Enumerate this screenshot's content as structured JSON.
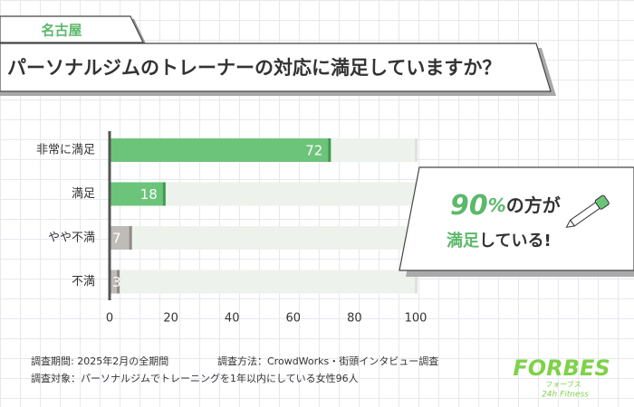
{
  "region": "名古屋",
  "chart_data": {
    "type": "bar",
    "orientation": "horizontal",
    "title": "パーソナルジムのトレーナーの対応に満足していますか？",
    "categories": [
      "非常に満足",
      "満足",
      "やや不満",
      "不満"
    ],
    "values": [
      72,
      18,
      7,
      3
    ],
    "colors": [
      "#6cc47a",
      "#6cc47a",
      "#bfbbb7",
      "#bfbbb7"
    ],
    "cap_colors": [
      "#3f9a50",
      "#3f9a50",
      "#8e8985",
      "#8e8985"
    ],
    "track_color": "#eef2ec",
    "xlim": [
      0,
      100
    ],
    "xticks": [
      0,
      20,
      40,
      60,
      80,
      100
    ]
  },
  "callout": {
    "number": "90",
    "unit": "%",
    "line1_rest": "の方が",
    "highlight": "満足",
    "line2_rest": "している!"
  },
  "footnotes": {
    "period": "調査期間: 2025年2月の全期間",
    "method": "調査方法：CrowdWorks・街頭インタビュー調査",
    "subject": "調査対象：パーソナルジムでトレーニングを1年以内にしている女性96人"
  },
  "logo": {
    "name": "FORBES",
    "kana": "フォーブス",
    "sub": "24h Fitness"
  }
}
